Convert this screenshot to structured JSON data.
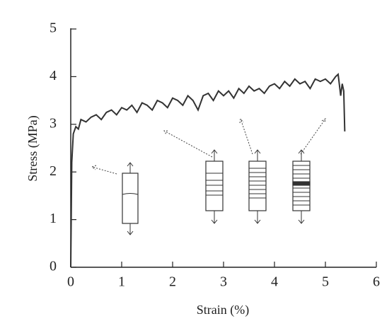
{
  "chart_data": {
    "type": "line",
    "xlabel": "Strain (%)",
    "ylabel": "Stress (MPa)",
    "xlim": [
      0,
      6
    ],
    "ylim": [
      0,
      5
    ],
    "xticks": [
      0,
      1,
      2,
      3,
      4,
      5,
      6
    ],
    "yticks": [
      0,
      1,
      2,
      3,
      4,
      5
    ],
    "series": [
      {
        "color": "#333333",
        "x": [
          0,
          0.02,
          0.05,
          0.1,
          0.15,
          0.2,
          0.3,
          0.4,
          0.5,
          0.6,
          0.7,
          0.8,
          0.9,
          1.0,
          1.1,
          1.2,
          1.3,
          1.4,
          1.5,
          1.6,
          1.7,
          1.8,
          1.9,
          2.0,
          2.1,
          2.2,
          2.3,
          2.4,
          2.5,
          2.6,
          2.7,
          2.8,
          2.9,
          3.0,
          3.1,
          3.2,
          3.3,
          3.4,
          3.5,
          3.6,
          3.7,
          3.8,
          3.9,
          4.0,
          4.1,
          4.2,
          4.3,
          4.4,
          4.5,
          4.6,
          4.7,
          4.8,
          4.9,
          5.0,
          5.1,
          5.2,
          5.25,
          5.3,
          5.33,
          5.36,
          5.38
        ],
        "values": [
          0,
          2.2,
          2.8,
          2.95,
          2.9,
          3.1,
          3.05,
          3.15,
          3.2,
          3.1,
          3.25,
          3.3,
          3.2,
          3.35,
          3.3,
          3.4,
          3.25,
          3.45,
          3.4,
          3.3,
          3.5,
          3.45,
          3.35,
          3.55,
          3.5,
          3.4,
          3.6,
          3.5,
          3.3,
          3.6,
          3.65,
          3.5,
          3.7,
          3.6,
          3.7,
          3.55,
          3.75,
          3.65,
          3.8,
          3.7,
          3.75,
          3.65,
          3.8,
          3.85,
          3.75,
          3.9,
          3.8,
          3.95,
          3.85,
          3.9,
          3.75,
          3.95,
          3.9,
          3.95,
          3.85,
          4.0,
          4.05,
          3.6,
          3.85,
          3.7,
          2.85
        ]
      }
    ]
  }
}
